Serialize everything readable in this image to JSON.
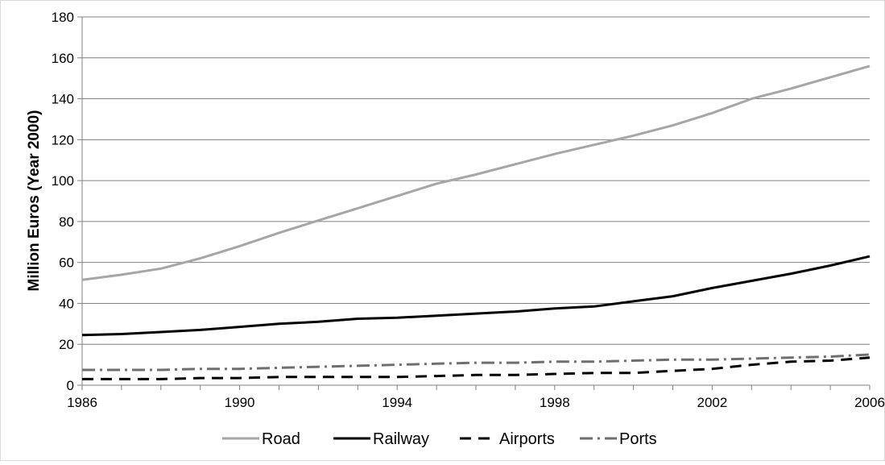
{
  "chart_data": {
    "type": "line",
    "ylabel": "Million Euros (Year 2000)",
    "xlabel": "",
    "xlim": [
      1986,
      2006
    ],
    "ylim": [
      0,
      180
    ],
    "y_ticks": [
      0,
      20,
      40,
      60,
      80,
      100,
      120,
      140,
      160,
      180
    ],
    "x_tick_labels": [
      "1986",
      "1990",
      "1994",
      "1998",
      "2002",
      "2006"
    ],
    "grid": "horizontal",
    "legend_position": "bottom",
    "x": [
      1986,
      1987,
      1988,
      1989,
      1990,
      1991,
      1992,
      1993,
      1994,
      1995,
      1996,
      1997,
      1998,
      1999,
      2000,
      2001,
      2002,
      2003,
      2004,
      2005,
      2006
    ],
    "series": [
      {
        "name": "Road",
        "color": "#a6a6a6",
        "dash": "solid",
        "values": [
          51.5,
          54,
          57,
          62,
          68,
          74.5,
          80.5,
          86.5,
          92.5,
          98.5,
          103,
          108,
          113,
          117.5,
          122,
          127,
          133,
          140,
          145,
          150.5,
          156
        ]
      },
      {
        "name": "Railway",
        "color": "#000000",
        "dash": "solid",
        "values": [
          24.5,
          25,
          26,
          27,
          28.5,
          30,
          31,
          32.5,
          33,
          34,
          35,
          36,
          37.5,
          38.5,
          41,
          43.5,
          47.5,
          51,
          54.5,
          58.5,
          63
        ]
      },
      {
        "name": "Airports",
        "color": "#000000",
        "dash": "dashed",
        "values": [
          3,
          3,
          3,
          3.5,
          3.5,
          4,
          4,
          4,
          4,
          4.5,
          5,
          5,
          5.5,
          6,
          6,
          7,
          8,
          10,
          11.5,
          12,
          13.5
        ]
      },
      {
        "name": "Ports",
        "color": "#6f6f6f",
        "dash": "dashdot",
        "values": [
          7.5,
          7.5,
          7.5,
          8,
          8,
          8.5,
          9,
          9.5,
          10,
          10.5,
          11,
          11,
          11.5,
          11.5,
          12,
          12.5,
          12.5,
          13,
          13.5,
          14,
          15
        ]
      }
    ]
  }
}
